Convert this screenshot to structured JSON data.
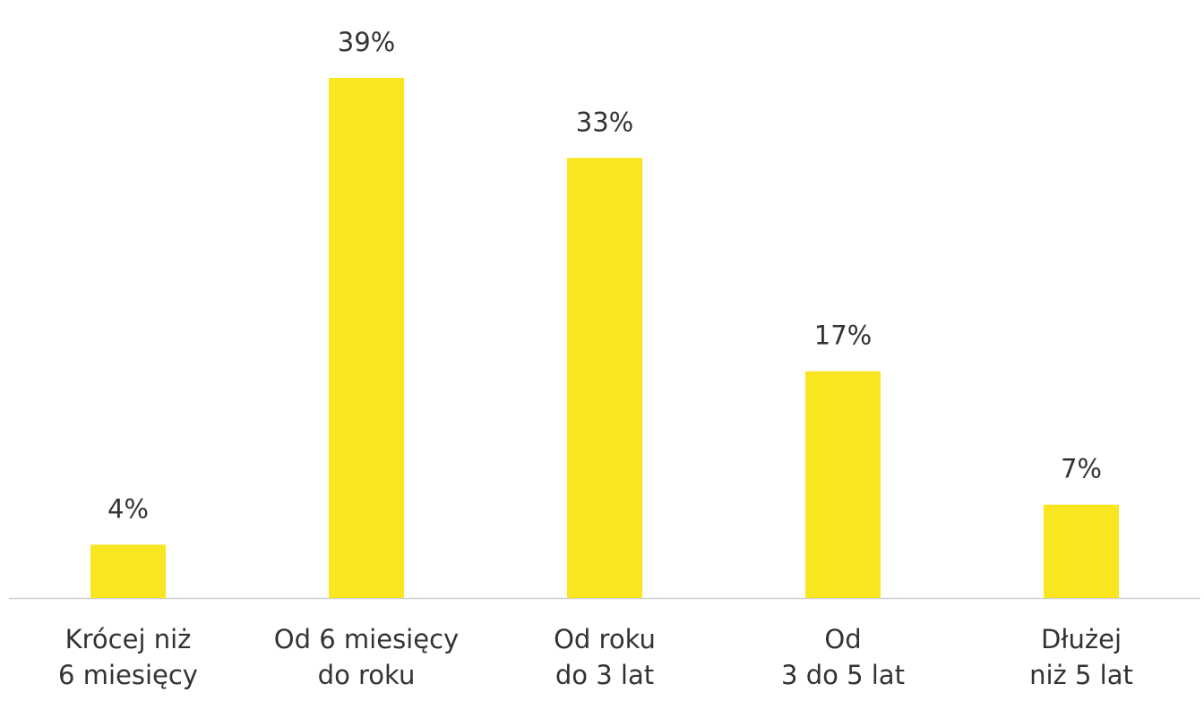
{
  "chart_data": {
    "type": "bar",
    "categories": [
      [
        "Krócej niż",
        "6 miesięcy"
      ],
      [
        "Od 6 miesięcy",
        "do roku"
      ],
      [
        "Od roku",
        "do 3 lat"
      ],
      [
        "Od",
        "3 do 5 lat"
      ],
      [
        "Dłużej",
        "niż 5 lat"
      ]
    ],
    "values": [
      4,
      39,
      33,
      17,
      7
    ],
    "value_labels": [
      "4%",
      "39%",
      "33%",
      "17%",
      "7%"
    ],
    "color": "#f9e520"
  }
}
